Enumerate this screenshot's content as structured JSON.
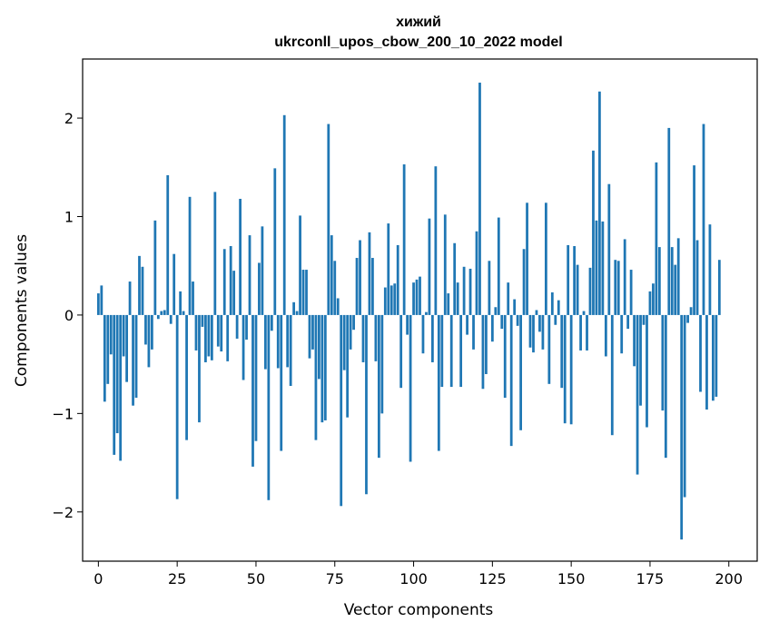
{
  "chart_data": {
    "type": "bar",
    "title_line1": "хижий",
    "title_line2": "ukrconll_upos_cbow_200_10_2022 model",
    "xlabel": "Vector components",
    "ylabel": "Components values",
    "xlim": [
      -5,
      209
    ],
    "ylim": [
      -2.5,
      2.6
    ],
    "xticks": [
      0,
      25,
      50,
      75,
      100,
      125,
      150,
      175,
      200
    ],
    "yticks": [
      -2,
      -1,
      0,
      1,
      2
    ],
    "ytick_labels": [
      "−2",
      "−1",
      "0",
      "1",
      "2"
    ],
    "grid": false,
    "bar_color": "#1f77b4",
    "values": [
      0.22,
      0.3,
      -0.88,
      -0.7,
      -0.4,
      -1.42,
      -1.2,
      -1.48,
      -0.42,
      -0.68,
      0.34,
      -0.92,
      -0.84,
      0.6,
      0.49,
      -0.3,
      -0.53,
      -0.35,
      0.96,
      -0.04,
      0.04,
      0.05,
      1.42,
      -0.09,
      0.62,
      -1.87,
      0.24,
      0.04,
      -1.27,
      1.2,
      0.34,
      -0.36,
      -1.09,
      -0.12,
      -0.48,
      -0.42,
      -0.46,
      1.25,
      -0.32,
      -0.37,
      0.67,
      -0.47,
      0.7,
      0.45,
      -0.24,
      1.18,
      -0.66,
      -0.25,
      0.81,
      -1.54,
      -1.28,
      0.53,
      0.9,
      -0.55,
      -1.88,
      -0.16,
      1.49,
      -0.54,
      -1.38,
      2.03,
      -0.53,
      -0.72,
      0.13,
      0.04,
      1.01,
      0.46,
      0.46,
      -0.44,
      -0.35,
      -1.27,
      -0.65,
      -1.09,
      -1.07,
      1.94,
      0.81,
      0.55,
      0.17,
      -1.94,
      -0.56,
      -1.04,
      -0.35,
      -0.15,
      0.58,
      0.76,
      -0.48,
      -1.82,
      0.84,
      0.58,
      -0.47,
      -1.45,
      -1.0,
      0.28,
      0.93,
      0.3,
      0.32,
      0.71,
      -0.74,
      1.53,
      -0.2,
      -1.49,
      0.33,
      0.36,
      0.39,
      -0.39,
      0.03,
      0.98,
      -0.48,
      1.51,
      -1.38,
      -0.73,
      1.02,
      0.22,
      -0.73,
      0.73,
      0.33,
      -0.73,
      0.49,
      -0.2,
      0.47,
      -0.35,
      0.85,
      2.36,
      -0.75,
      -0.6,
      0.55,
      -0.27,
      0.08,
      0.99,
      -0.14,
      -0.84,
      0.33,
      -1.33,
      0.16,
      -0.11,
      -1.17,
      0.67,
      1.14,
      -0.33,
      -0.38,
      0.05,
      -0.17,
      -0.35,
      1.14,
      -0.7,
      0.23,
      -0.1,
      0.15,
      -0.74,
      -1.1,
      0.71,
      -1.11,
      0.7,
      0.51,
      -0.36,
      0.04,
      -0.36,
      0.48,
      1.67,
      0.96,
      2.27,
      0.95,
      -0.42,
      1.33,
      -1.22,
      0.56,
      0.55,
      -0.39,
      0.77,
      -0.14,
      0.46,
      -0.52,
      -1.62,
      -0.92,
      -0.1,
      -1.14,
      0.24,
      0.32,
      1.55,
      0.69,
      -0.97,
      -1.45,
      1.9,
      0.69,
      0.51,
      0.78,
      -2.28,
      -1.85,
      -0.08,
      0.08,
      1.52,
      0.76,
      -0.78,
      1.94,
      -0.96,
      0.92,
      -0.87,
      -0.83,
      0.56
    ]
  }
}
